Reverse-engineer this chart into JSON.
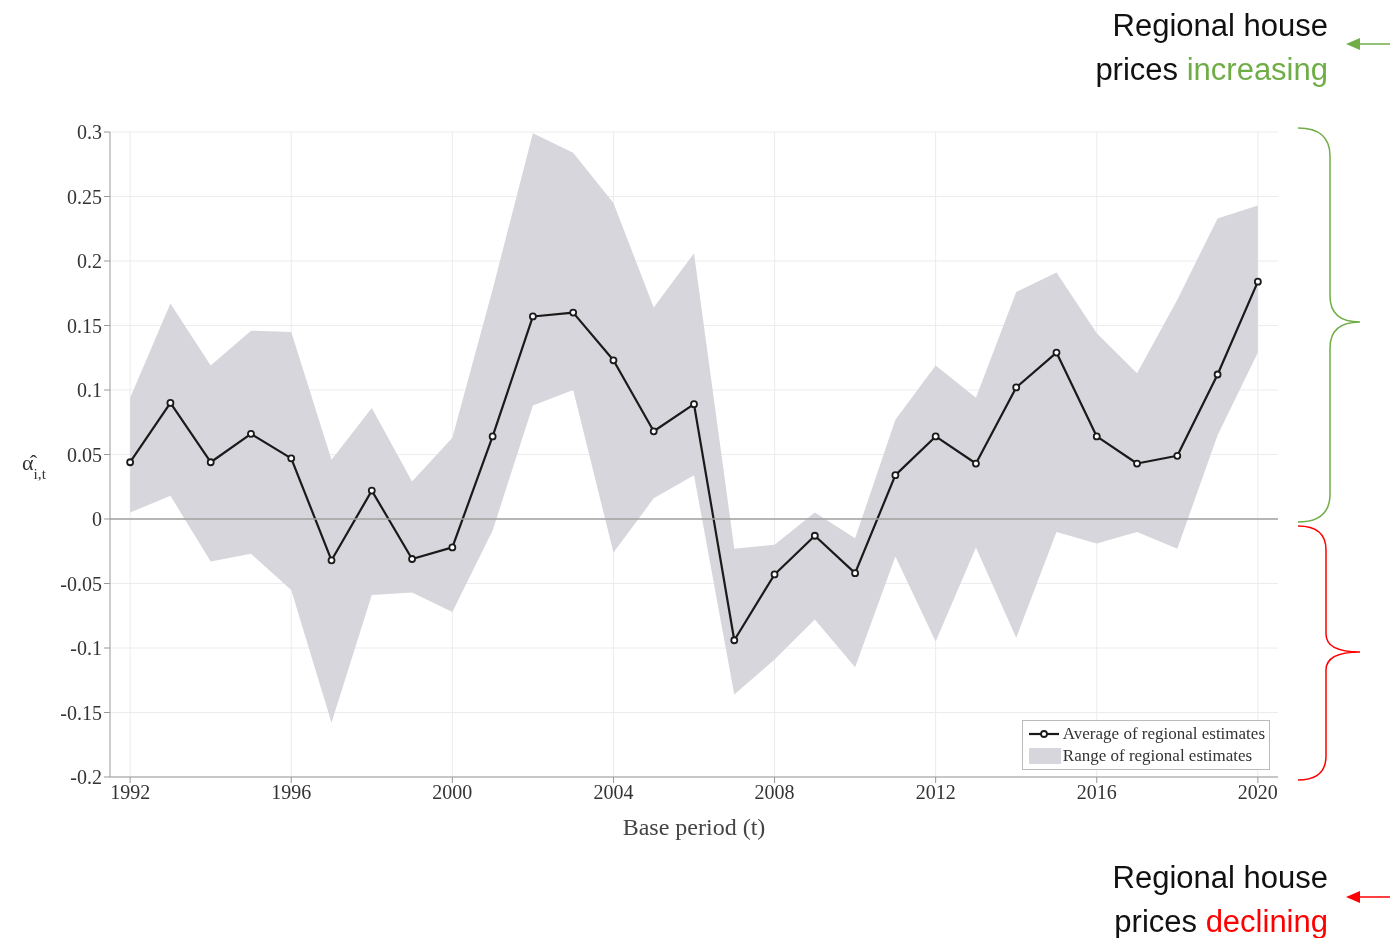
{
  "chart_data": {
    "type": "line",
    "xlabel": "Base period (t)",
    "ylabel": "α̂$_{i,t}$",
    "x": [
      1992,
      1993,
      1994,
      1995,
      1996,
      1997,
      1998,
      1999,
      2000,
      2001,
      2002,
      2003,
      2004,
      2005,
      2006,
      2007,
      2008,
      2009,
      2010,
      2011,
      2012,
      2013,
      2014,
      2015,
      2016,
      2017,
      2018,
      2019,
      2020
    ],
    "series": [
      {
        "name": "Average of regional estimates",
        "color": "#1a1a1a",
        "values": [
          0.044,
          0.09,
          0.044,
          0.066,
          0.047,
          -0.032,
          0.022,
          -0.031,
          -0.022,
          0.064,
          0.157,
          0.16,
          0.123,
          0.068,
          0.089,
          -0.094,
          -0.043,
          -0.013,
          -0.042,
          0.034,
          0.064,
          0.043,
          0.102,
          0.129,
          0.064,
          0.043,
          0.049,
          0.112,
          0.184
        ],
        "lower": [
          0.005,
          0.018,
          -0.033,
          -0.027,
          -0.055,
          -0.158,
          -0.059,
          -0.057,
          -0.072,
          -0.009,
          0.088,
          0.1,
          -0.026,
          0.016,
          0.034,
          -0.136,
          -0.109,
          -0.078,
          -0.115,
          -0.029,
          -0.095,
          -0.022,
          -0.092,
          -0.01,
          -0.019,
          -0.01,
          -0.023,
          0.065,
          0.129
        ],
        "upper": [
          0.094,
          0.167,
          0.119,
          0.146,
          0.145,
          0.046,
          0.086,
          0.029,
          0.063,
          0.178,
          0.299,
          0.284,
          0.245,
          0.164,
          0.206,
          -0.023,
          -0.02,
          0.005,
          -0.015,
          0.077,
          0.119,
          0.094,
          0.176,
          0.191,
          0.144,
          0.113,
          0.17,
          0.233,
          0.243
        ]
      }
    ],
    "xlim": [
      1991.5,
      2020.5
    ],
    "xticks": [
      1992,
      1996,
      2000,
      2004,
      2008,
      2012,
      2016,
      2020
    ],
    "ylim": [
      -0.2,
      0.3
    ],
    "yticks": [
      -0.2,
      -0.15,
      -0.1,
      -0.05,
      0,
      0.05,
      0.1,
      0.15,
      0.2,
      0.25,
      0.3
    ],
    "ref_lines": [
      {
        "axis": "y",
        "value": 0,
        "color": "#a0a0a0"
      }
    ],
    "grid": true,
    "legend": "bottom right",
    "marker": "circle",
    "line_style": "solid",
    "annotations": [
      "Regional house prices increasing",
      "Regional house prices declining",
      "Range of regional estimates"
    ]
  }
}
